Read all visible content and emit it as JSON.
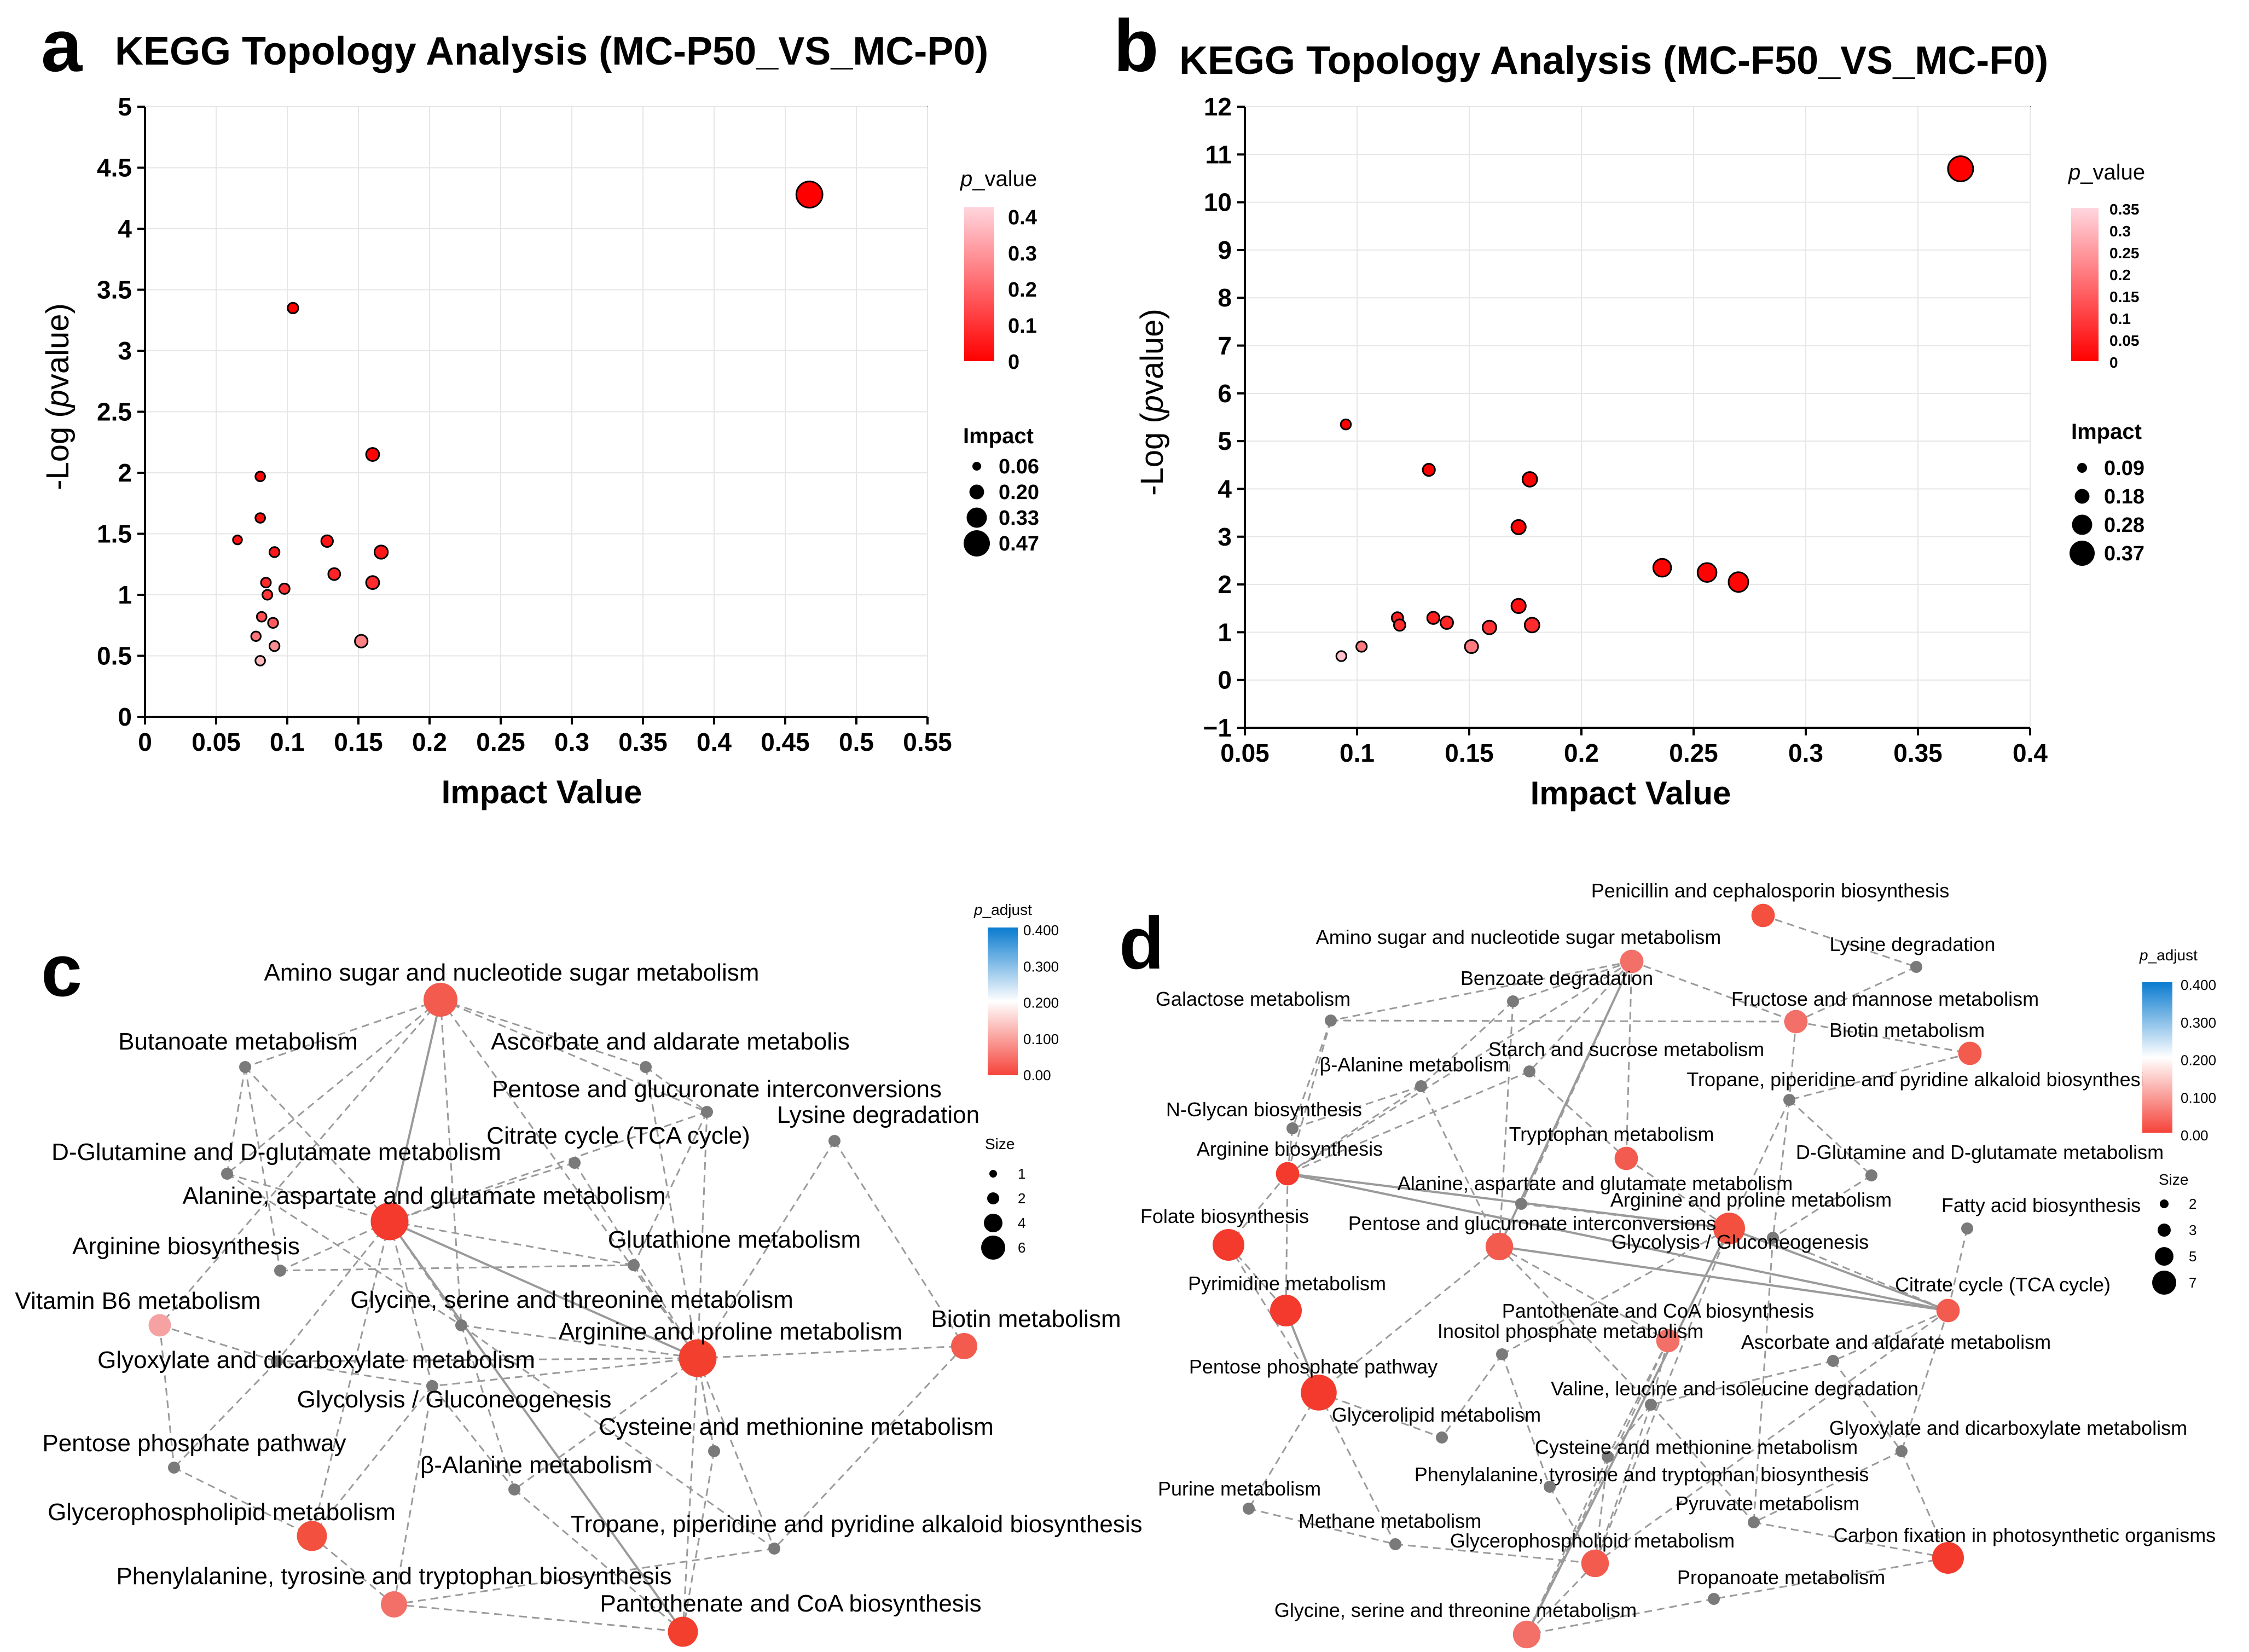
{
  "chart_data": [
    {
      "panel": "a",
      "type": "scatter",
      "title": "KEGG Topology Analysis (MC-P50_VS_MC-P0)",
      "xlabel": "Impact Value",
      "ylabel": "-Log (pvalue)",
      "ylabel_parts": [
        "-Log (",
        "p",
        "value)"
      ],
      "xlim": [
        0,
        0.55
      ],
      "ylim": [
        0,
        5
      ],
      "xticks": [
        0,
        0.05,
        0.1,
        0.15,
        0.2,
        0.25,
        0.3,
        0.35,
        0.4,
        0.45,
        0.5,
        0.55
      ],
      "xtick_labels": [
        "0",
        "0.05",
        "0.1",
        "0.15",
        "0.2",
        "0.25",
        "0.3",
        "0.35",
        "0.4",
        "0.45",
        "0.5",
        "0.55"
      ],
      "yticks": [
        0,
        0.5,
        1,
        1.5,
        2,
        2.5,
        3,
        3.5,
        4,
        4.5,
        5
      ],
      "ytick_labels": [
        "0",
        "0.5",
        "1",
        "1.5",
        "2",
        "2.5",
        "3",
        "3.5",
        "4",
        "4.5",
        "5"
      ],
      "color_legend": {
        "title_prefix": "p",
        "title_suffix": "_value",
        "labels": [
          "0.4",
          "0.3",
          "0.2",
          "0.1",
          "0"
        ],
        "min": 0,
        "max": 0.4,
        "low_color": "#ff0000",
        "high_color": "#ffd6de"
      },
      "size_legend": {
        "title": "Impact",
        "labels": [
          "0.06",
          "0.20",
          "0.33",
          "0.47"
        ],
        "values": [
          0.06,
          0.2,
          0.33,
          0.47
        ]
      },
      "points": [
        {
          "x": 0.467,
          "y": 4.28
        },
        {
          "x": 0.104,
          "y": 3.35
        },
        {
          "x": 0.16,
          "y": 2.15
        },
        {
          "x": 0.081,
          "y": 1.97
        },
        {
          "x": 0.081,
          "y": 1.63
        },
        {
          "x": 0.065,
          "y": 1.45
        },
        {
          "x": 0.128,
          "y": 1.44
        },
        {
          "x": 0.091,
          "y": 1.35
        },
        {
          "x": 0.166,
          "y": 1.35
        },
        {
          "x": 0.133,
          "y": 1.17
        },
        {
          "x": 0.16,
          "y": 1.1
        },
        {
          "x": 0.085,
          "y": 1.1
        },
        {
          "x": 0.098,
          "y": 1.05
        },
        {
          "x": 0.086,
          "y": 1.0
        },
        {
          "x": 0.082,
          "y": 0.82
        },
        {
          "x": 0.09,
          "y": 0.77
        },
        {
          "x": 0.078,
          "y": 0.66
        },
        {
          "x": 0.091,
          "y": 0.58
        },
        {
          "x": 0.152,
          "y": 0.62
        },
        {
          "x": 0.081,
          "y": 0.46
        }
      ]
    },
    {
      "panel": "b",
      "type": "scatter",
      "title": "KEGG Topology Analysis (MC-F50_VS_MC-F0)",
      "xlabel": "Impact Value",
      "ylabel": "-Log (pvalue)",
      "ylabel_parts": [
        "-Log (",
        "p",
        "value)"
      ],
      "xlim": [
        0.05,
        0.4
      ],
      "ylim": [
        -1,
        12
      ],
      "xticks": [
        0.05,
        0.1,
        0.15,
        0.2,
        0.25,
        0.3,
        0.35,
        0.4
      ],
      "xtick_labels": [
        "0.05",
        "0.1",
        "0.15",
        "0.2",
        "0.25",
        "0.3",
        "0.35",
        "0.4"
      ],
      "yticks": [
        -1,
        0,
        1,
        2,
        3,
        4,
        5,
        6,
        7,
        8,
        9,
        10,
        11,
        12
      ],
      "ytick_labels": [
        "−1",
        "0",
        "1",
        "2",
        "3",
        "4",
        "5",
        "6",
        "7",
        "8",
        "9",
        "10",
        "11",
        "12"
      ],
      "color_legend": {
        "title_prefix": "p",
        "title_suffix": "_value",
        "labels": [
          "0.35",
          "0.3",
          "0.25",
          "0.2",
          "0.15",
          "0.1",
          "0.05",
          "0"
        ],
        "min": 0,
        "max": 0.35,
        "low_color": "#ff0000",
        "high_color": "#ffd6de"
      },
      "size_legend": {
        "title": "Impact",
        "labels": [
          "0.09",
          "0.18",
          "0.28",
          "0.37"
        ],
        "values": [
          0.09,
          0.18,
          0.28,
          0.37
        ]
      },
      "points": [
        {
          "x": 0.369,
          "y": 10.7
        },
        {
          "x": 0.095,
          "y": 5.35
        },
        {
          "x": 0.132,
          "y": 4.4
        },
        {
          "x": 0.177,
          "y": 4.2
        },
        {
          "x": 0.172,
          "y": 3.2
        },
        {
          "x": 0.236,
          "y": 2.35
        },
        {
          "x": 0.256,
          "y": 2.25
        },
        {
          "x": 0.27,
          "y": 2.05
        },
        {
          "x": 0.172,
          "y": 1.55
        },
        {
          "x": 0.118,
          "y": 1.3
        },
        {
          "x": 0.134,
          "y": 1.3
        },
        {
          "x": 0.14,
          "y": 1.2
        },
        {
          "x": 0.119,
          "y": 1.15
        },
        {
          "x": 0.178,
          "y": 1.15
        },
        {
          "x": 0.159,
          "y": 1.1
        },
        {
          "x": 0.102,
          "y": 0.7
        },
        {
          "x": 0.151,
          "y": 0.7
        },
        {
          "x": 0.093,
          "y": 0.5
        }
      ]
    },
    {
      "panel": "c",
      "type": "network",
      "color_legend": {
        "title_prefix": "p",
        "title_suffix": "_adjust",
        "labels": [
          "0.400",
          "0.300",
          "0.200",
          "0.100",
          "0.00"
        ],
        "top_color": "#0a7bd0",
        "mid_color": "#ffffff",
        "bottom_color": "#f5433a"
      },
      "size_legend": {
        "title": "Size",
        "labels": [
          "1",
          "2",
          "4",
          "6"
        ]
      },
      "nodes": [
        {
          "label": "Amino sugar and nucleotide sugar metabolism",
          "kind": "big",
          "color": "#f35b4f",
          "size": 6
        },
        {
          "label": "Butanoate metabolism",
          "kind": "gray"
        },
        {
          "label": "Ascorbate and aldarate metabolis",
          "kind": "gray"
        },
        {
          "label": "Pentose and glucuronate interconversions",
          "kind": "gray"
        },
        {
          "label": "Citrate cycle (TCA cycle)",
          "kind": "gray"
        },
        {
          "label": "Lysine degradation",
          "kind": "gray"
        },
        {
          "label": "D-Glutamine and D-glutamate metabolism",
          "kind": "gray"
        },
        {
          "label": "Alanine, aspartate and glutamate metabolism",
          "kind": "big",
          "color": "#f33a2c",
          "size": 7
        },
        {
          "label": "Arginine biosynthesis",
          "kind": "gray"
        },
        {
          "label": "Glutathione metabolism",
          "kind": "gray"
        },
        {
          "label": "Vitamin B6 metabolism",
          "kind": "big",
          "color": "#f7a2a2",
          "size": 3
        },
        {
          "label": "Glycine, serine and threonine metabolism",
          "kind": "gray"
        },
        {
          "label": "Arginine and proline metabolism",
          "kind": "big",
          "color": "#f3402e",
          "size": 7
        },
        {
          "label": "Biotin metabolism",
          "kind": "big",
          "color": "#f35b4f",
          "size": 4
        },
        {
          "label": "Glyoxylate and dicarboxylate metabolism",
          "kind": "gray"
        },
        {
          "label": "Glycolysis / Gluconeogenesis",
          "kind": "gray"
        },
        {
          "label": "Cysteine and methionine metabolism",
          "kind": "gray"
        },
        {
          "label": "Pentose phosphate pathway",
          "kind": "gray"
        },
        {
          "label": "β-Alanine metabolism",
          "kind": "gray"
        },
        {
          "label": "Glycerophospholipid metabolism",
          "kind": "big",
          "color": "#f3503f",
          "size": 5
        },
        {
          "label": "Tropane, piperidine and pyridine alkaloid biosynthesis",
          "kind": "gray"
        },
        {
          "label": "Phenylalanine, tyrosine and tryptophan biosynthesis",
          "kind": "big",
          "color": "#f37068",
          "size": 4
        },
        {
          "label": "Pantothenate and CoA biosynthesis",
          "kind": "big",
          "color": "#f3402e",
          "size": 5
        }
      ]
    },
    {
      "panel": "d",
      "type": "network",
      "color_legend": {
        "title_prefix": "p",
        "title_suffix": "_adjust",
        "labels": [
          "0.400",
          "0.300",
          "0.200",
          "0.100",
          "0.00"
        ],
        "top_color": "#0a7bd0",
        "mid_color": "#ffffff",
        "bottom_color": "#f5433a"
      },
      "size_legend": {
        "title": "Size",
        "labels": [
          "2",
          "3",
          "5",
          "7"
        ]
      },
      "nodes": [
        {
          "label": "Penicillin and cephalosporin biosynthesis",
          "kind": "big",
          "color": "#f3503f",
          "size": 3
        },
        {
          "label": "Amino sugar and nucleotide sugar metabolism",
          "kind": "big",
          "color": "#f37068",
          "size": 3
        },
        {
          "label": "Lysine degradation",
          "kind": "gray"
        },
        {
          "label": "Galactose metabolism",
          "kind": "gray"
        },
        {
          "label": "Benzoate degradation",
          "kind": "gray"
        },
        {
          "label": "Fructose and mannose metabolism",
          "kind": "big",
          "color": "#f37068",
          "size": 3
        },
        {
          "label": "Biotin metabolism",
          "kind": "big",
          "color": "#f35b4f",
          "size": 3
        },
        {
          "label": "Starch and sucrose metabolism",
          "kind": "gray"
        },
        {
          "label": "β-Alanine metabolism",
          "kind": "gray"
        },
        {
          "label": "Tropane, piperidine and pyridine alkaloid biosynthesis",
          "kind": "gray"
        },
        {
          "label": "N-Glycan biosynthesis",
          "kind": "gray"
        },
        {
          "label": "Tryptophan metabolism",
          "kind": "big",
          "color": "#f35b4f",
          "size": 3
        },
        {
          "label": "Arginine biosynthesis",
          "kind": "big",
          "color": "#f33a2c",
          "size": 3
        },
        {
          "label": "D-Glutamine and D-glutamate metabolism",
          "kind": "gray"
        },
        {
          "label": "Alanine, aspartate and glutamate metabolism",
          "kind": "gray"
        },
        {
          "label": "Arginine and proline metabolism",
          "kind": "big",
          "color": "#f3503f",
          "size": 5
        },
        {
          "label": "Fatty acid biosynthesis",
          "kind": "gray"
        },
        {
          "label": "Folate biosynthesis",
          "kind": "big",
          "color": "#f33a2c",
          "size": 5
        },
        {
          "label": "Pentose and glucuronate interconversions",
          "kind": "big",
          "color": "#f35b4f",
          "size": 4
        },
        {
          "label": "Glycolysis / Gluconeogenesis",
          "kind": "gray"
        },
        {
          "label": "Pyrimidine metabolism",
          "kind": "big",
          "color": "#f33a2c",
          "size": 5
        },
        {
          "label": "Citrate cycle (TCA cycle)",
          "kind": "big",
          "color": "#f35b4f",
          "size": 3
        },
        {
          "label": "Pantothenate and CoA biosynthesis",
          "kind": "big",
          "color": "#f37068",
          "size": 3
        },
        {
          "label": "Inositol phosphate metabolism",
          "kind": "gray"
        },
        {
          "label": "Ascorbate and aldarate metabolism",
          "kind": "gray"
        },
        {
          "label": "Pentose phosphate pathway",
          "kind": "big",
          "color": "#f33a2c",
          "size": 6
        },
        {
          "label": "Valine, leucine and isoleucine degradation",
          "kind": "gray"
        },
        {
          "label": "Glycerolipid metabolism",
          "kind": "gray"
        },
        {
          "label": "Glyoxylate and dicarboxylate metabolism",
          "kind": "gray"
        },
        {
          "label": "Cysteine and methionine metabolism",
          "kind": "gray"
        },
        {
          "label": "Phenylalanine, tyrosine and tryptophan biosynthesis",
          "kind": "gray"
        },
        {
          "label": "Purine metabolism",
          "kind": "gray"
        },
        {
          "label": "Pyruvate metabolism",
          "kind": "gray"
        },
        {
          "label": "Methane metabolism",
          "kind": "gray"
        },
        {
          "label": "Glycerophospholipid metabolism",
          "kind": "big",
          "color": "#f35b4f",
          "size": 4
        },
        {
          "label": "Carbon fixation in photosynthetic organisms",
          "kind": "big",
          "color": "#f33a2c",
          "size": 5
        },
        {
          "label": "Propanoate metabolism",
          "kind": "gray"
        },
        {
          "label": "Glycine, serine and threonine metabolism",
          "kind": "big",
          "color": "#f37068",
          "size": 4
        }
      ]
    }
  ],
  "panel_letters": {
    "a": "a",
    "b": "b",
    "c": "c",
    "d": "d"
  }
}
